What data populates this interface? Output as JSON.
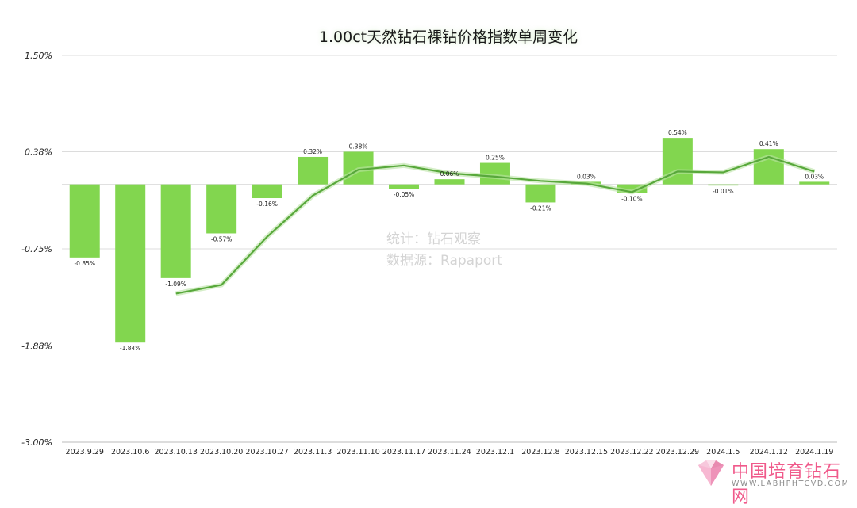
{
  "title": "1.00ct天然钻石裸钻价格指数单周变化",
  "watermark": {
    "line1": "统计：钻石观察",
    "line2": "数据源：Rapaport"
  },
  "logo": {
    "name": "中国培育钻石网",
    "url_text": "WWW.LABHPHTCVD.COM"
  },
  "chart_data": {
    "type": "bar",
    "categories": [
      "2023.9.29",
      "2023.10.6",
      "2023.10.13",
      "2023.10.20",
      "2023.10.27",
      "2023.11.3",
      "2023.11.10",
      "2023.11.17",
      "2023.11.24",
      "2023.12.1",
      "2023.12.8",
      "2023.12.15",
      "2023.12.22",
      "2023.12.29",
      "2024.1.5",
      "2024.1.12",
      "2024.1.19"
    ],
    "values": [
      -0.85,
      -1.84,
      -1.09,
      -0.57,
      -0.16,
      0.32,
      0.38,
      -0.05,
      0.06,
      0.25,
      -0.21,
      0.03,
      -0.1,
      0.54,
      -0.01,
      0.41,
      0.03
    ],
    "value_labels": [
      "-0.85%",
      "-1.84%",
      "-1.09%",
      "-0.57%",
      "-0.16%",
      "0.32%",
      "0.38%",
      "-0.05%",
      "0.06%",
      "0.25%",
      "-0.21%",
      "0.03%",
      "-0.10%",
      "0.54%",
      "-0.01%",
      "0.41%",
      "0.03%"
    ],
    "trend_line": {
      "start_index": 2,
      "values": [
        -1.27,
        -1.17,
        -0.61,
        -0.13,
        0.17,
        0.22,
        0.13,
        0.09,
        0.04,
        0.01,
        -0.09,
        0.15,
        0.14,
        0.32,
        0.15
      ]
    },
    "y_ticks": [
      1.5,
      0.38,
      -0.75,
      -1.88,
      -3.0
    ],
    "y_tick_labels": [
      "1.50%",
      "0.38%",
      "-0.75%",
      "-1.88%",
      "-3.00%"
    ],
    "ylim": [
      -3.0,
      1.5
    ],
    "grid": true,
    "colors": {
      "bar": "#82d64f",
      "line": "#58a83b"
    }
  }
}
